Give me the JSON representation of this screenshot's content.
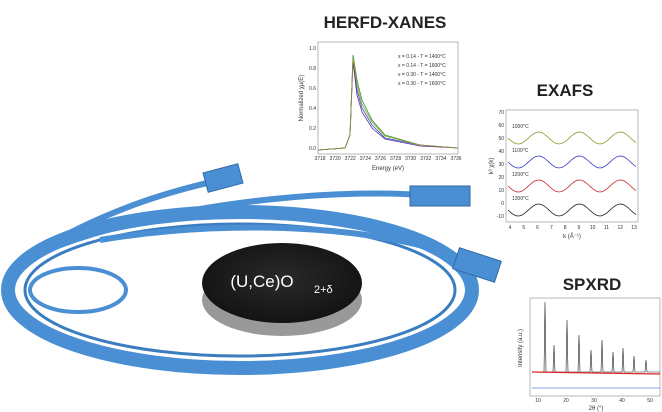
{
  "xanes": {
    "title": "HERFD-XANES",
    "ylabel": "Normalized χμ(E)",
    "xlabel": "Energy (eV)",
    "yticks": [
      "0.0",
      "0.2",
      "0.4",
      "0.6",
      "0.8",
      "1.0"
    ],
    "xticks": [
      "3718",
      "3720",
      "3722",
      "3724",
      "3726",
      "3728",
      "3730",
      "3732",
      "3734",
      "3736"
    ],
    "legend": [
      {
        "text": "x = 0.14 - T = 1400°C",
        "color": "#1f5fbf"
      },
      {
        "text": "x = 0.14 - T = 1600°C",
        "color": "#2a9a3a"
      },
      {
        "text": "x = 0.30 - T = 1400°C",
        "color": "#6a2a9a"
      },
      {
        "text": "x = 0.30 - T = 1600°C",
        "color": "#9a9a2a"
      }
    ]
  },
  "exafs": {
    "title": "EXAFS",
    "ylabel": "k³ χ(k)",
    "xlabel": "k (Å⁻¹)",
    "yticks": [
      "-10",
      "0",
      "10",
      "20",
      "30",
      "40",
      "50",
      "60",
      "70"
    ],
    "xticks": [
      "4",
      "5",
      "6",
      "7",
      "8",
      "9",
      "10",
      "11",
      "12",
      "13"
    ],
    "curves": [
      {
        "text": "1000°C",
        "color": "#8a9a2a"
      },
      {
        "text": "1100°C",
        "color": "#3a3ac8"
      },
      {
        "text": "1200°C",
        "color": "#c82a2a"
      },
      {
        "text": "1300°C",
        "color": "#222222"
      }
    ]
  },
  "spxrd": {
    "title": "SPXRD",
    "ylabel": "Intensity (a.u.)",
    "xlabel": "2θ (°)",
    "xticks": [
      "10",
      "20",
      "30",
      "40",
      "50"
    ]
  },
  "sample": {
    "label": "(U,Ce)O",
    "subscript": "2+δ"
  }
}
